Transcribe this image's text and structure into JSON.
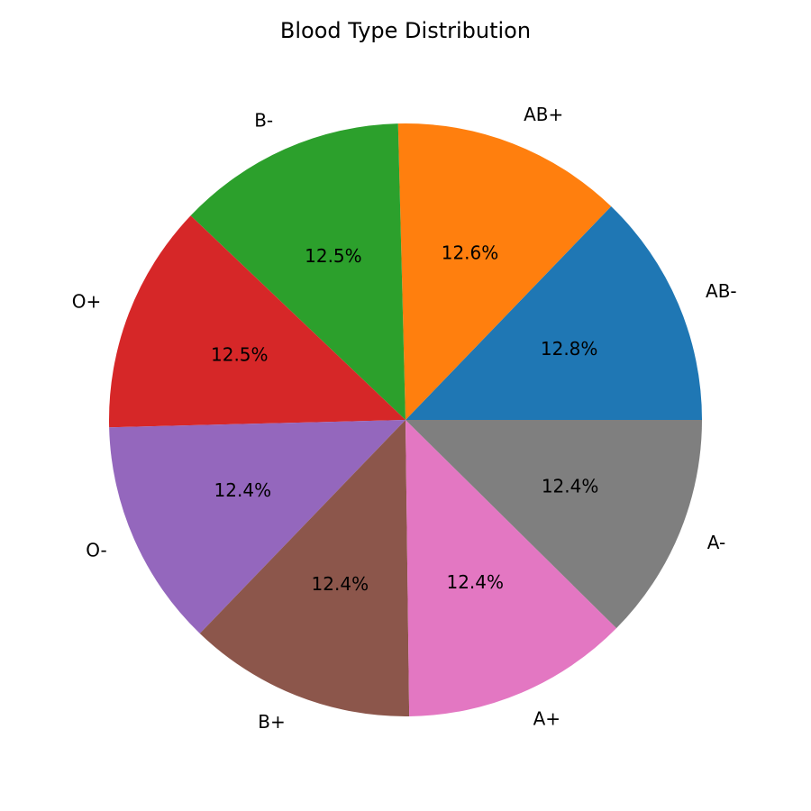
{
  "chart_data": {
    "type": "pie",
    "title": "Blood Type Distribution",
    "start_angle_deg": 0,
    "direction": "counterclockwise",
    "slices": [
      {
        "label": "AB-",
        "value": 12.8,
        "pct_label": "12.8%",
        "color": "#1f77b4"
      },
      {
        "label": "AB+",
        "value": 12.6,
        "pct_label": "12.6%",
        "color": "#ff7f0e"
      },
      {
        "label": "B-",
        "value": 12.5,
        "pct_label": "12.5%",
        "color": "#2ca02c"
      },
      {
        "label": "O+",
        "value": 12.5,
        "pct_label": "12.5%",
        "color": "#d62728"
      },
      {
        "label": "O-",
        "value": 12.4,
        "pct_label": "12.4%",
        "color": "#9467bd"
      },
      {
        "label": "B+",
        "value": 12.4,
        "pct_label": "12.4%",
        "color": "#8c564b"
      },
      {
        "label": "A+",
        "value": 12.4,
        "pct_label": "12.4%",
        "color": "#e377c2"
      },
      {
        "label": "A-",
        "value": 12.4,
        "pct_label": "12.4%",
        "color": "#7f7f7f"
      }
    ]
  }
}
